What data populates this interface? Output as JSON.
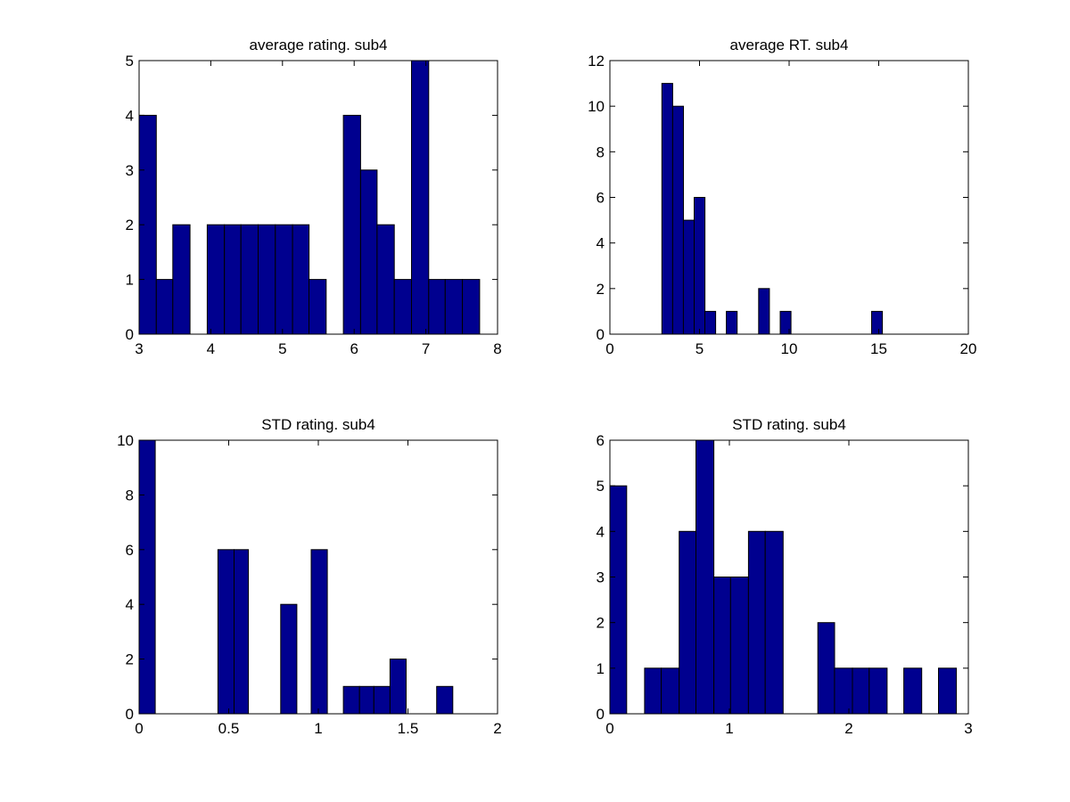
{
  "chart_data": [
    {
      "type": "bar",
      "title": "average rating. sub4",
      "xlabel": "",
      "ylabel": "",
      "xlim": [
        3,
        8
      ],
      "ylim": [
        0,
        5
      ],
      "xticks": [
        "3",
        "4",
        "5",
        "6",
        "7",
        "8"
      ],
      "yticks": [
        "0",
        "1",
        "2",
        "3",
        "4",
        "5"
      ],
      "grid": false,
      "bar_color": "#00008f",
      "bins": [
        {
          "x0": 3.0,
          "x1": 3.24,
          "count": 4
        },
        {
          "x0": 3.24,
          "x1": 3.47,
          "count": 1
        },
        {
          "x0": 3.47,
          "x1": 3.71,
          "count": 2
        },
        {
          "x0": 3.95,
          "x1": 4.19,
          "count": 2
        },
        {
          "x0": 4.19,
          "x1": 4.42,
          "count": 2
        },
        {
          "x0": 4.42,
          "x1": 4.66,
          "count": 2
        },
        {
          "x0": 4.66,
          "x1": 4.9,
          "count": 2
        },
        {
          "x0": 4.9,
          "x1": 5.14,
          "count": 2
        },
        {
          "x0": 5.14,
          "x1": 5.37,
          "count": 2
        },
        {
          "x0": 5.37,
          "x1": 5.61,
          "count": 1
        },
        {
          "x0": 5.85,
          "x1": 6.09,
          "count": 4
        },
        {
          "x0": 6.09,
          "x1": 6.32,
          "count": 3
        },
        {
          "x0": 6.32,
          "x1": 6.56,
          "count": 2
        },
        {
          "x0": 6.56,
          "x1": 6.8,
          "count": 1
        },
        {
          "x0": 6.8,
          "x1": 7.04,
          "count": 5
        },
        {
          "x0": 7.04,
          "x1": 7.27,
          "count": 1
        },
        {
          "x0": 7.27,
          "x1": 7.51,
          "count": 1
        },
        {
          "x0": 7.51,
          "x1": 7.75,
          "count": 1
        }
      ]
    },
    {
      "type": "bar",
      "title": "average RT. sub4",
      "xlabel": "",
      "ylabel": "",
      "xlim": [
        0,
        20
      ],
      "ylim": [
        0,
        12
      ],
      "xticks": [
        "0",
        "5",
        "10",
        "15",
        "20"
      ],
      "yticks": [
        "0",
        "2",
        "4",
        "6",
        "8",
        "10",
        "12"
      ],
      "grid": false,
      "bar_color": "#00008f",
      "bins": [
        {
          "x0": 2.9,
          "x1": 3.5,
          "count": 11
        },
        {
          "x0": 3.5,
          "x1": 4.1,
          "count": 10
        },
        {
          "x0": 4.1,
          "x1": 4.7,
          "count": 5
        },
        {
          "x0": 4.7,
          "x1": 5.3,
          "count": 6
        },
        {
          "x0": 5.3,
          "x1": 5.9,
          "count": 1
        },
        {
          "x0": 6.5,
          "x1": 7.1,
          "count": 1
        },
        {
          "x0": 8.3,
          "x1": 8.9,
          "count": 2
        },
        {
          "x0": 9.5,
          "x1": 10.1,
          "count": 1
        },
        {
          "x0": 14.6,
          "x1": 15.2,
          "count": 1
        }
      ]
    },
    {
      "type": "bar",
      "title": "STD rating. sub4",
      "xlabel": "",
      "ylabel": "",
      "xlim": [
        0,
        2
      ],
      "ylim": [
        0,
        10
      ],
      "xticks": [
        "0",
        "0.5",
        "1",
        "1.5",
        "2"
      ],
      "yticks": [
        "0",
        "2",
        "4",
        "6",
        "8",
        "10"
      ],
      "grid": false,
      "bar_color": "#00008f",
      "bins": [
        {
          "x0": 0.0,
          "x1": 0.09,
          "count": 10
        },
        {
          "x0": 0.44,
          "x1": 0.53,
          "count": 6
        },
        {
          "x0": 0.53,
          "x1": 0.61,
          "count": 6
        },
        {
          "x0": 0.79,
          "x1": 0.88,
          "count": 4
        },
        {
          "x0": 0.96,
          "x1": 1.05,
          "count": 6
        },
        {
          "x0": 1.14,
          "x1": 1.23,
          "count": 1
        },
        {
          "x0": 1.23,
          "x1": 1.31,
          "count": 1
        },
        {
          "x0": 1.31,
          "x1": 1.4,
          "count": 1
        },
        {
          "x0": 1.4,
          "x1": 1.49,
          "count": 2
        },
        {
          "x0": 1.66,
          "x1": 1.75,
          "count": 1
        }
      ]
    },
    {
      "type": "bar",
      "title": "STD rating. sub4",
      "xlabel": "",
      "ylabel": "",
      "xlim": [
        0,
        3
      ],
      "ylim": [
        0,
        6
      ],
      "xticks": [
        "0",
        "1",
        "2",
        "3"
      ],
      "yticks": [
        "0",
        "1",
        "2",
        "3",
        "4",
        "5",
        "6"
      ],
      "grid": false,
      "bar_color": "#00008f",
      "bins": [
        {
          "x0": 0.0,
          "x1": 0.14,
          "count": 5
        },
        {
          "x0": 0.29,
          "x1": 0.43,
          "count": 1
        },
        {
          "x0": 0.43,
          "x1": 0.58,
          "count": 1
        },
        {
          "x0": 0.58,
          "x1": 0.72,
          "count": 4
        },
        {
          "x0": 0.72,
          "x1": 0.87,
          "count": 6
        },
        {
          "x0": 0.87,
          "x1": 1.01,
          "count": 3
        },
        {
          "x0": 1.01,
          "x1": 1.16,
          "count": 3
        },
        {
          "x0": 1.16,
          "x1": 1.3,
          "count": 4
        },
        {
          "x0": 1.3,
          "x1": 1.45,
          "count": 4
        },
        {
          "x0": 1.74,
          "x1": 1.88,
          "count": 2
        },
        {
          "x0": 1.88,
          "x1": 2.03,
          "count": 1
        },
        {
          "x0": 2.03,
          "x1": 2.17,
          "count": 1
        },
        {
          "x0": 2.17,
          "x1": 2.32,
          "count": 1
        },
        {
          "x0": 2.46,
          "x1": 2.61,
          "count": 1
        },
        {
          "x0": 2.75,
          "x1": 2.9,
          "count": 1
        }
      ]
    }
  ]
}
